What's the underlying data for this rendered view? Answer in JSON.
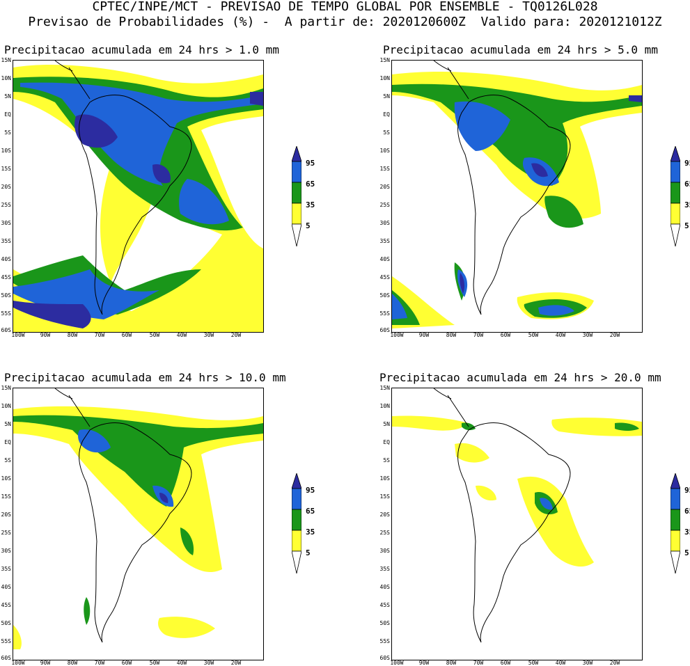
{
  "header": {
    "line1": "CPTEC/INPE/MCT - PREVISAO DE TEMPO GLOBAL POR ENSEMBLE - TQ0126L028",
    "line2": "Previsao de Probabilidades (%) -  A partir de: 2020120600Z  Valido para: 2020121012Z"
  },
  "panels": [
    {
      "title": "Precipitacao acumulada em 24 hrs > 1.0 mm"
    },
    {
      "title": "Precipitacao acumulada em 24 hrs > 5.0 mm"
    },
    {
      "title": "Precipitacao acumulada em 24 hrs > 10.0 mm"
    },
    {
      "title": "Precipitacao acumulada em 24 hrs > 20.0 mm"
    }
  ],
  "lat_labels": [
    "15N",
    "10N",
    "5N",
    "EQ",
    "5S",
    "10S",
    "15S",
    "20S",
    "25S",
    "30S",
    "35S",
    "40S",
    "45S",
    "50S",
    "55S",
    "60S"
  ],
  "lon_labels": [
    "100W",
    "90W",
    "80W",
    "70W",
    "60W",
    "50W",
    "40W",
    "30W",
    "20W"
  ],
  "colorbar": {
    "labels": [
      "95",
      "65",
      "35",
      "5"
    ],
    "colors": {
      "c95": "#2c2ca0",
      "c65": "#1f64d8",
      "c35": "#1a961a",
      "c5": "#ffff33"
    }
  }
}
